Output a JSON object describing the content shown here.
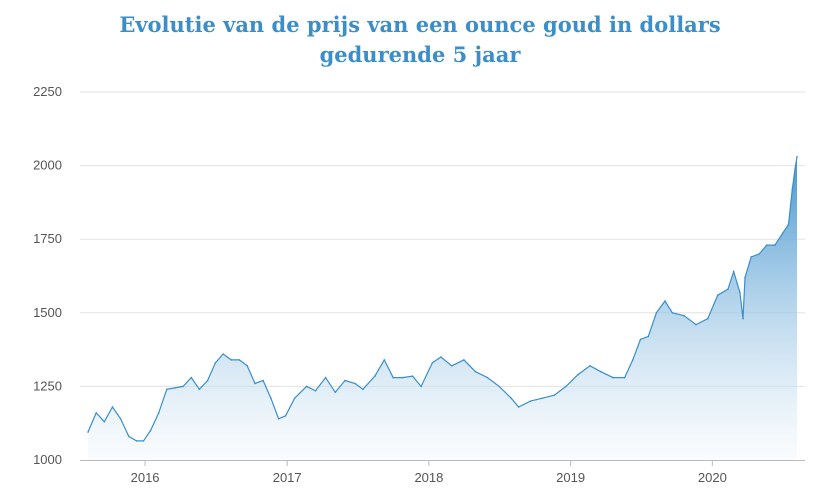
{
  "chart_data": {
    "type": "area",
    "title": "Evolutie van de prijs van een ounce goud in dollars gedurende 5 jaar",
    "xlabel": "",
    "ylabel": "",
    "ylim": [
      1000,
      2250
    ],
    "yticks": [
      "1000",
      "1250",
      "1500",
      "1750",
      "2000",
      "2250"
    ],
    "xticks": [
      "2016",
      "2017",
      "2018",
      "2019",
      "2020"
    ],
    "grid": true,
    "legend": "none",
    "colors": {
      "line": "#3a8fcc",
      "fill_top": "#3a8fcc",
      "fill_bottom": "#f2f7fb",
      "grid": "#e3e3e3",
      "title": "#3b8ec8"
    },
    "series": [
      {
        "x": [
          "2015-08-07",
          "2015-08-28",
          "2015-09-18",
          "2015-10-09",
          "2015-10-30",
          "2015-11-20",
          "2015-12-10",
          "2015-12-28",
          "2016-01-15",
          "2016-02-05",
          "2016-02-26",
          "2016-03-18",
          "2016-04-08",
          "2016-04-29",
          "2016-05-20",
          "2016-06-10",
          "2016-06-30",
          "2016-07-20",
          "2016-08-10",
          "2016-08-31",
          "2016-09-20",
          "2016-10-10",
          "2016-10-31",
          "2016-11-20",
          "2016-12-10",
          "2016-12-28",
          "2017-01-20",
          "2017-02-20",
          "2017-03-15",
          "2017-04-10",
          "2017-05-05",
          "2017-05-30",
          "2017-06-25",
          "2017-07-15",
          "2017-08-15",
          "2017-09-08",
          "2017-10-01",
          "2017-10-25",
          "2017-11-20",
          "2017-12-12",
          "2018-01-10",
          "2018-02-01",
          "2018-03-01",
          "2018-04-01",
          "2018-05-01",
          "2018-06-01",
          "2018-07-01",
          "2018-08-01",
          "2018-08-20",
          "2018-09-20",
          "2018-10-20",
          "2018-11-20",
          "2018-12-20",
          "2019-01-20",
          "2019-02-20",
          "2019-03-20",
          "2019-04-20",
          "2019-05-20",
          "2019-06-10",
          "2019-06-30",
          "2019-07-20",
          "2019-08-10",
          "2019-09-01",
          "2019-09-20",
          "2019-10-20",
          "2019-11-20",
          "2019-12-20",
          "2020-01-15",
          "2020-02-10",
          "2020-02-25",
          "2020-03-05",
          "2020-03-12",
          "2020-03-20",
          "2020-03-25",
          "2020-04-10",
          "2020-05-01",
          "2020-05-20",
          "2020-06-10",
          "2020-06-30",
          "2020-07-15",
          "2020-07-25",
          "2020-08-01",
          "2020-08-06"
        ],
        "values": [
          1095,
          1160,
          1130,
          1180,
          1140,
          1080,
          1065,
          1065,
          1100,
          1160,
          1240,
          1245,
          1250,
          1280,
          1240,
          1270,
          1330,
          1360,
          1340,
          1340,
          1320,
          1260,
          1270,
          1210,
          1140,
          1150,
          1210,
          1250,
          1235,
          1280,
          1230,
          1270,
          1260,
          1240,
          1285,
          1340,
          1280,
          1280,
          1285,
          1250,
          1330,
          1350,
          1320,
          1340,
          1300,
          1280,
          1250,
          1210,
          1180,
          1200,
          1210,
          1220,
          1250,
          1290,
          1320,
          1300,
          1280,
          1280,
          1340,
          1410,
          1420,
          1500,
          1540,
          1500,
          1490,
          1460,
          1480,
          1560,
          1580,
          1640,
          1600,
          1570,
          1480,
          1620,
          1690,
          1700,
          1730,
          1730,
          1770,
          1800,
          1920,
          1990,
          2030
        ]
      }
    ]
  }
}
